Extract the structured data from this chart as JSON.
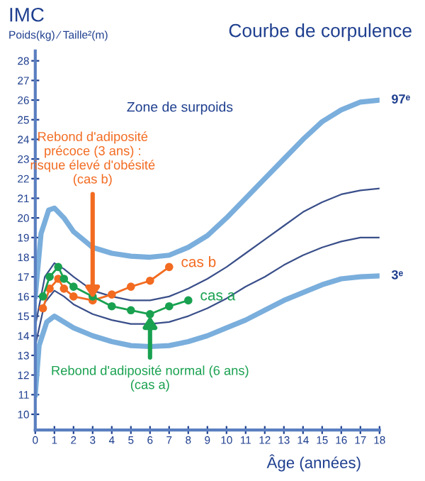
{
  "chart_data": {
    "type": "line",
    "title": "Courbe de corpulence",
    "subtitle": "Poids(kg) ∕ Taille²(m)",
    "ylabel": "IMC",
    "xlabel": "Âge (années)",
    "xlim": [
      0,
      18
    ],
    "xticks": [
      0,
      1,
      2,
      3,
      4,
      5,
      6,
      7,
      8,
      9,
      10,
      11,
      12,
      13,
      14,
      15,
      16,
      17,
      18
    ],
    "ylim": [
      9.2,
      28.5
    ],
    "yticks": [
      10,
      11,
      12,
      13,
      14,
      15,
      16,
      17,
      18,
      19,
      20,
      21,
      22,
      23,
      24,
      25,
      26,
      27,
      28
    ],
    "grid": false,
    "legend": false,
    "series": [
      {
        "name": "97ᵉ",
        "color": "#7aaedc",
        "marker": "none",
        "x": [
          0,
          0.3,
          0.7,
          1,
          1.5,
          2,
          3,
          4,
          5,
          6,
          7,
          8,
          9,
          10,
          11,
          12,
          13,
          14,
          15,
          16,
          17,
          18
        ],
        "values": [
          16.0,
          19.2,
          20.4,
          20.5,
          20.0,
          19.3,
          18.5,
          18.2,
          18.05,
          18.0,
          18.1,
          18.5,
          19.1,
          20.0,
          21.0,
          22.0,
          23.0,
          24.0,
          24.9,
          25.5,
          25.9,
          26.0
        ]
      },
      {
        "color": "#3a4f8a",
        "marker": "none",
        "x": [
          0,
          0.5,
          1,
          1.5,
          2,
          3,
          4,
          5,
          6,
          7,
          8,
          9,
          10,
          11,
          12,
          13,
          14,
          15,
          16,
          17,
          18
        ],
        "values": [
          14.5,
          17.0,
          17.7,
          17.4,
          17.0,
          16.3,
          16.0,
          15.8,
          15.8,
          16.0,
          16.4,
          16.9,
          17.5,
          18.2,
          18.9,
          19.6,
          20.3,
          20.8,
          21.2,
          21.4,
          21.5
        ]
      },
      {
        "color": "#3a4f8a",
        "marker": "none",
        "x": [
          0,
          0.5,
          1,
          1.5,
          2,
          3,
          4,
          5,
          6,
          7,
          8,
          9,
          10,
          11,
          12,
          13,
          14,
          15,
          16,
          17,
          18
        ],
        "values": [
          13.5,
          15.7,
          16.3,
          16.0,
          15.6,
          15.1,
          14.8,
          14.6,
          14.6,
          14.7,
          15.0,
          15.4,
          15.9,
          16.5,
          17.0,
          17.6,
          18.1,
          18.5,
          18.8,
          19.0,
          19.0
        ]
      },
      {
        "name": "3ᵉ",
        "color": "#7aaedc",
        "marker": "none",
        "x": [
          0,
          0.2,
          0.6,
          1,
          1.5,
          2,
          3,
          4,
          5,
          6,
          7,
          8,
          9,
          10,
          11,
          12,
          13,
          14,
          15,
          16,
          17,
          18
        ],
        "values": [
          11.0,
          13.5,
          14.7,
          15.0,
          14.7,
          14.4,
          14.0,
          13.7,
          13.5,
          13.45,
          13.5,
          13.7,
          14.0,
          14.4,
          14.8,
          15.3,
          15.8,
          16.2,
          16.6,
          16.9,
          17.0,
          17.05
        ]
      },
      {
        "name": "cas b",
        "color": "#f26b21",
        "marker": "circle",
        "x": [
          0.4,
          0.75,
          1.2,
          1.5,
          2,
          3,
          4,
          5,
          6,
          7
        ],
        "values": [
          15.4,
          16.4,
          16.9,
          16.4,
          16.0,
          15.8,
          16.1,
          16.5,
          16.8,
          17.5
        ]
      },
      {
        "name": "cas a",
        "color": "#19a150",
        "marker": "circle",
        "x": [
          0.4,
          0.75,
          1.2,
          1.5,
          2,
          3,
          4,
          5,
          6,
          7,
          8
        ],
        "values": [
          16.0,
          17.0,
          17.5,
          16.9,
          16.5,
          16.0,
          15.5,
          15.3,
          15.1,
          15.5,
          15.8
        ]
      }
    ],
    "annotations": [
      "Zone de surpoids",
      {
        "text": "Rebond d'adiposité\nprécoce (3 ans) :\nrisque élevé d'obésité\n(cas b)",
        "x": 3,
        "y": 15.8
      },
      {
        "text": "Rebond d'adiposité normal (6 ans)\n(cas a)",
        "x": 6,
        "y": 15.1
      }
    ]
  }
}
